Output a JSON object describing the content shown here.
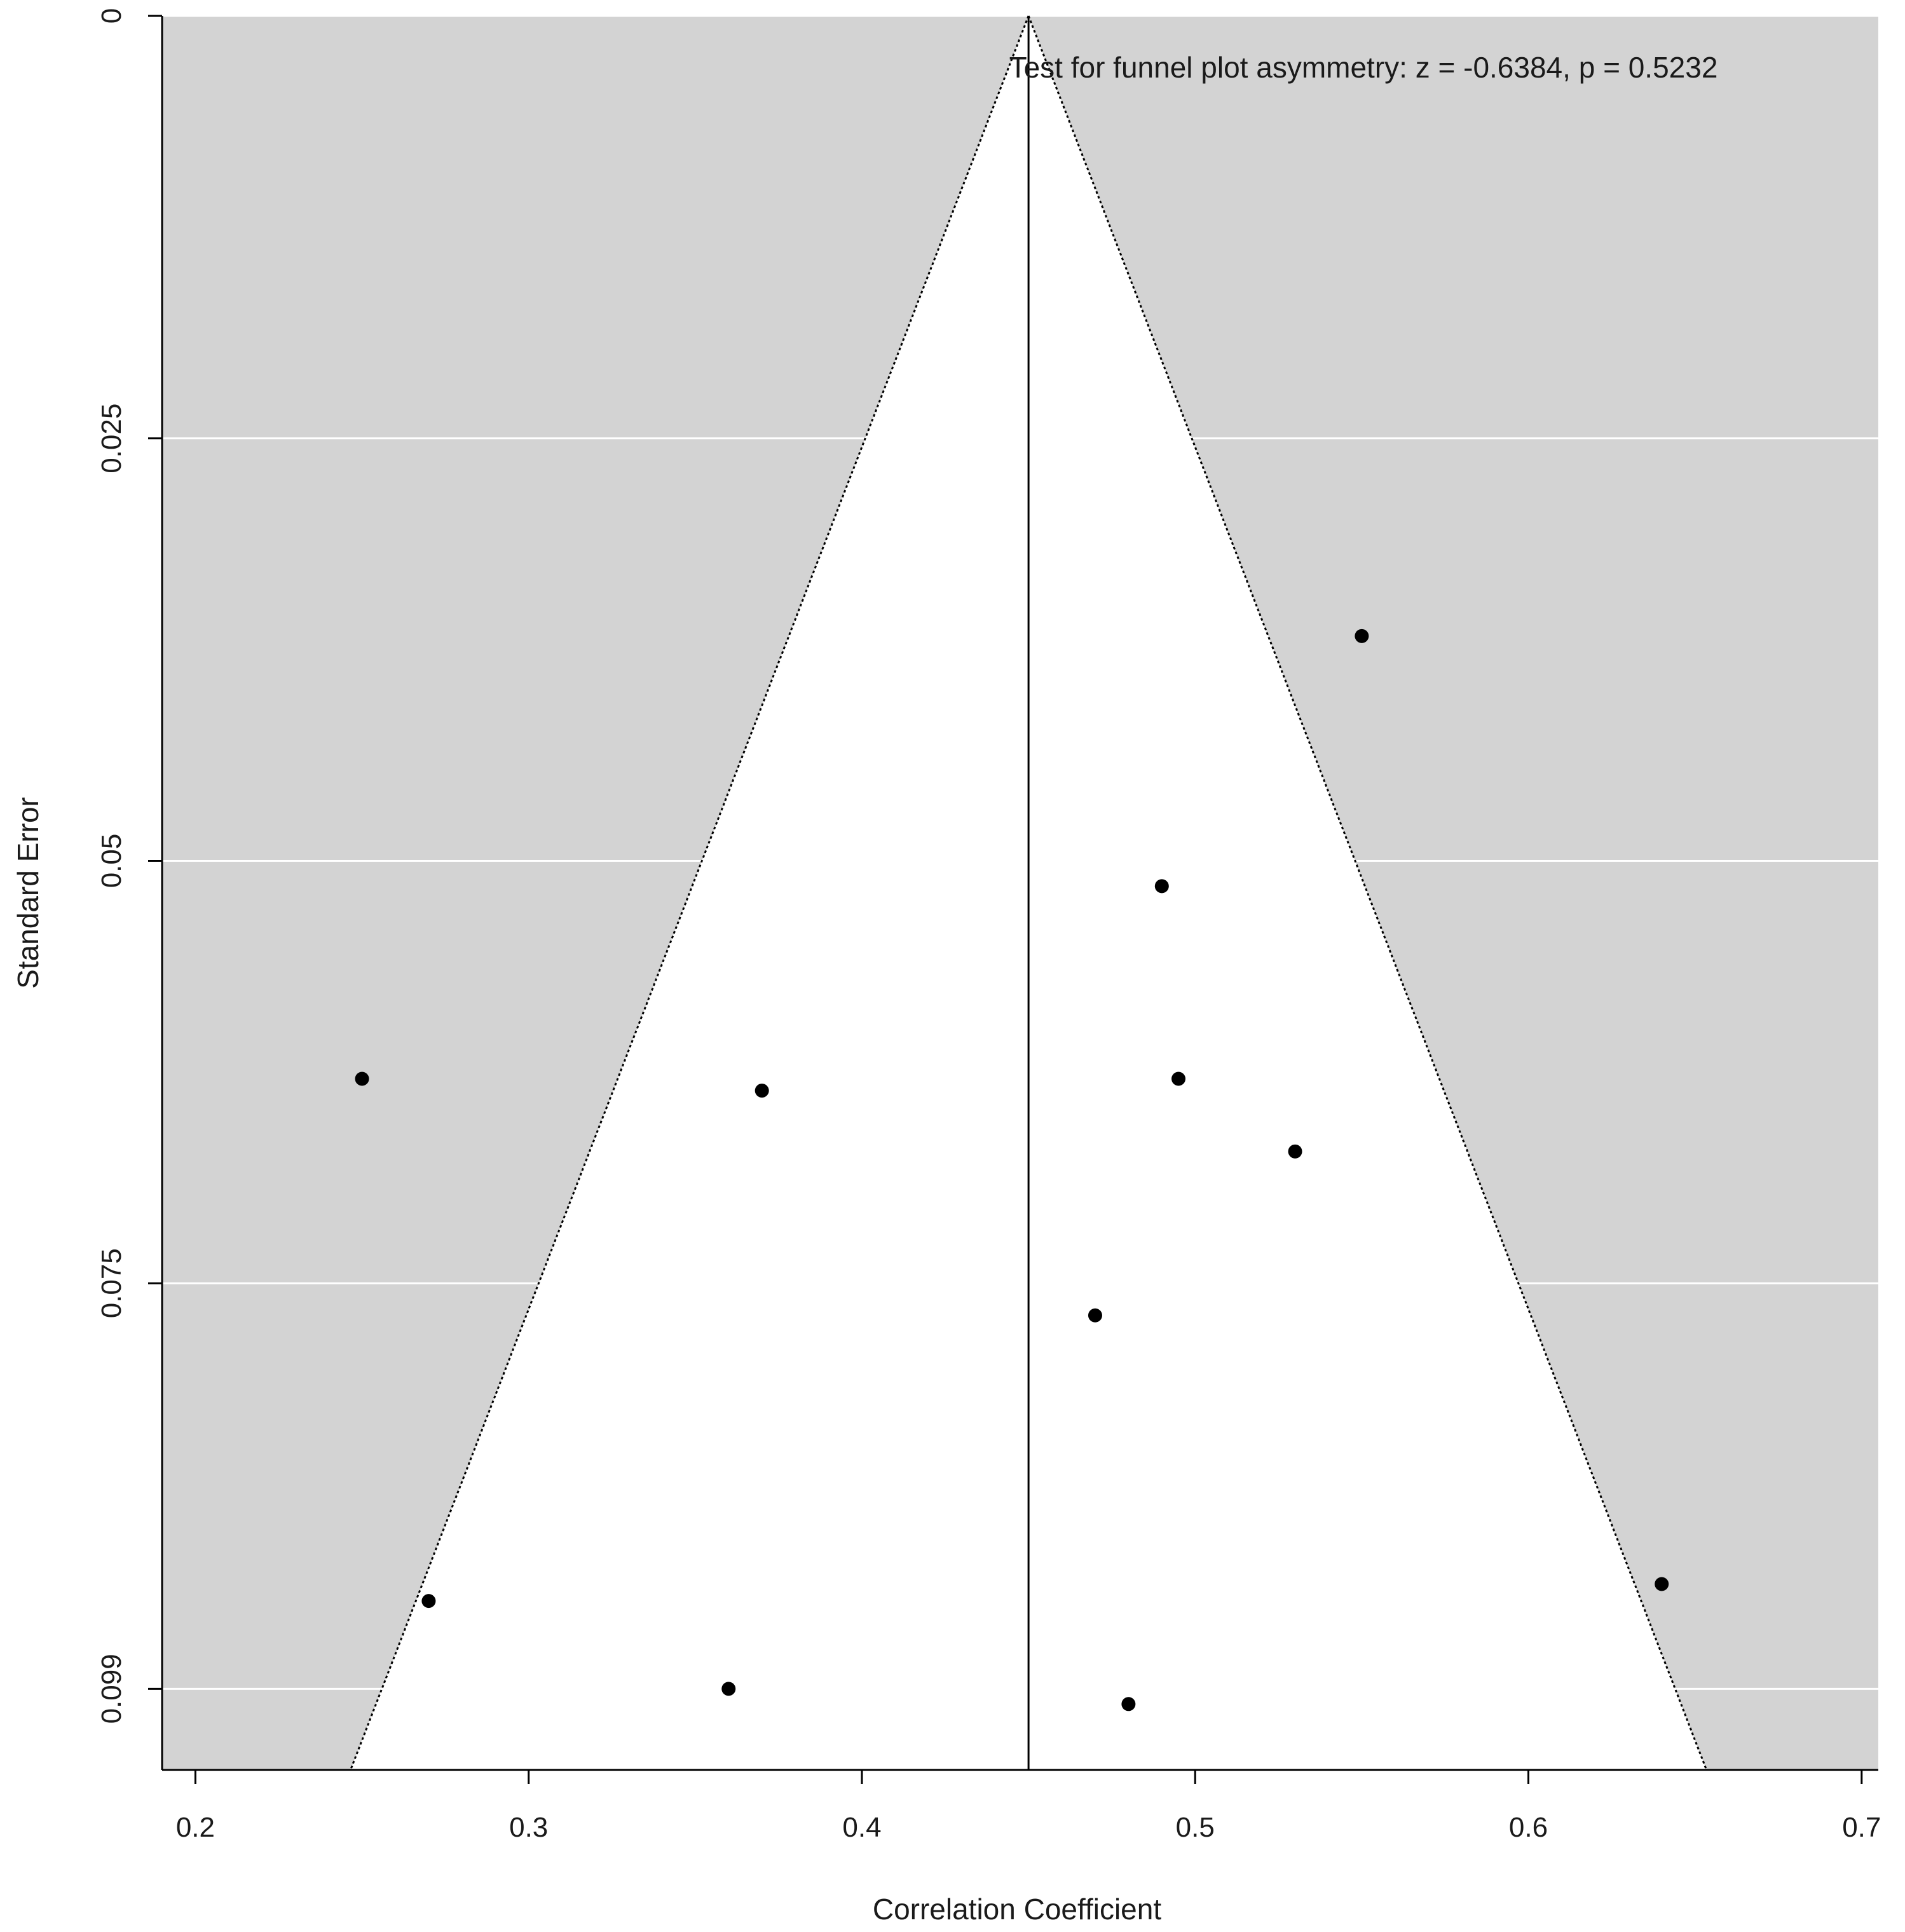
{
  "chart_data": {
    "type": "scatter",
    "annotation": "Test for funnel plot asymmetry: z = -0.6384, p = 0.5232",
    "xlabel": "Correlation Coefficient",
    "ylabel": "Standard Error",
    "xlim": [
      0.19,
      0.705
    ],
    "ylim": [
      0,
      0.1038
    ],
    "y_reversed": true,
    "x_ticks": [
      0.2,
      0.3,
      0.4,
      0.5,
      0.6,
      0.7
    ],
    "x_tick_labels": [
      "0.2",
      "0.3",
      "0.4",
      "0.5",
      "0.6",
      "0.7"
    ],
    "y_ticks": [
      0,
      0.025,
      0.05,
      0.075,
      0.099
    ],
    "y_tick_labels": [
      "0",
      "0.025",
      "0.05",
      "0.075",
      "0.099"
    ],
    "center_estimate": 0.45,
    "funnel_halfwidth_factor": 1.96,
    "grid": true,
    "colors": {
      "background_panel": "#d3d3d3",
      "funnel_fill": "#ffffff",
      "gridline": "#ffffff",
      "points": "#000000",
      "lines": "#000000"
    },
    "points": [
      {
        "x": 0.55,
        "y": 0.0367
      },
      {
        "x": 0.49,
        "y": 0.0515
      },
      {
        "x": 0.25,
        "y": 0.0629
      },
      {
        "x": 0.37,
        "y": 0.0636
      },
      {
        "x": 0.495,
        "y": 0.0629
      },
      {
        "x": 0.53,
        "y": 0.0672
      },
      {
        "x": 0.47,
        "y": 0.0769
      },
      {
        "x": 0.27,
        "y": 0.0938
      },
      {
        "x": 0.64,
        "y": 0.0928
      },
      {
        "x": 0.36,
        "y": 0.099
      },
      {
        "x": 0.48,
        "y": 0.0999
      }
    ]
  }
}
